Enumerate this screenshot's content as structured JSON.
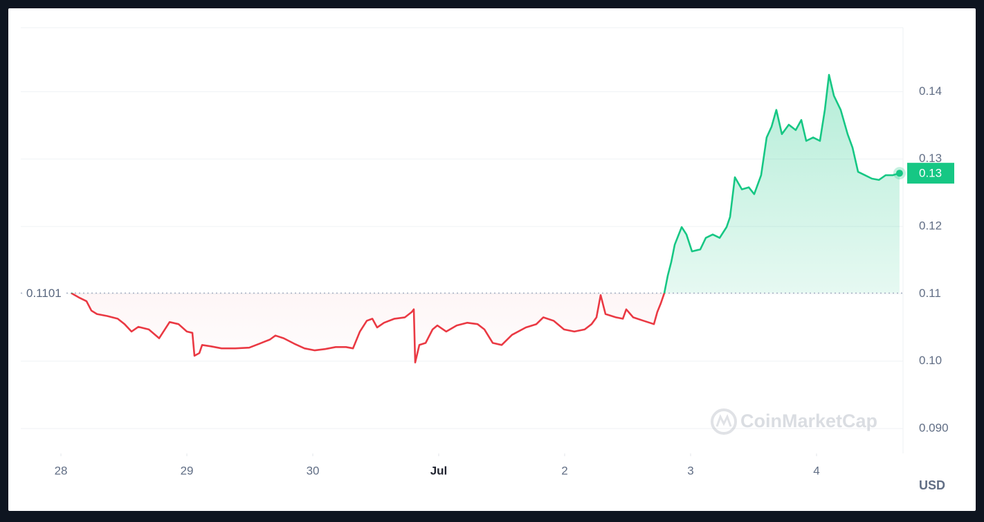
{
  "chart_data": {
    "type": "line",
    "x": [
      0.082,
      0.148,
      0.203,
      0.242,
      0.286,
      0.368,
      0.451,
      0.505,
      0.56,
      0.615,
      0.698,
      0.78,
      0.863,
      0.934,
      1.0,
      1.044,
      1.06,
      1.099,
      1.121,
      1.192,
      1.275,
      1.385,
      1.495,
      1.577,
      1.659,
      1.703,
      1.769,
      1.852,
      1.934,
      2.016,
      2.099,
      2.181,
      2.264,
      2.319,
      2.374,
      2.429,
      2.473,
      2.511,
      2.566,
      2.648,
      2.731,
      2.786,
      2.802,
      2.813,
      2.846,
      2.896,
      2.951,
      2.989,
      3.06,
      3.143,
      3.225,
      3.308,
      3.363,
      3.429,
      3.5,
      3.582,
      3.692,
      3.775,
      3.83,
      3.912,
      3.995,
      4.077,
      4.159,
      4.214,
      4.253,
      4.286,
      4.324,
      4.407,
      4.462,
      4.489,
      4.544,
      4.626,
      4.709,
      4.736,
      4.764,
      4.791,
      4.819,
      4.846,
      4.874,
      4.929,
      4.967,
      5.011,
      5.077,
      5.121,
      5.176,
      5.231,
      5.286,
      5.313,
      5.352,
      5.407,
      5.462,
      5.505,
      5.56,
      5.604,
      5.643,
      5.681,
      5.725,
      5.78,
      5.835,
      5.879,
      5.918,
      5.973,
      6.027,
      6.066,
      6.099,
      6.138,
      6.192,
      6.247,
      6.286,
      6.33,
      6.385,
      6.44,
      6.495,
      6.549,
      6.604,
      6.659
    ],
    "values": [
      0.1101,
      0.1094,
      0.1089,
      0.1075,
      0.107,
      0.1067,
      0.1063,
      0.1055,
      0.1044,
      0.1051,
      0.1047,
      0.1034,
      0.1058,
      0.1055,
      0.1044,
      0.1042,
      0.1008,
      0.1012,
      0.1024,
      0.1022,
      0.1019,
      0.1019,
      0.102,
      0.1026,
      0.1032,
      0.1038,
      0.1034,
      0.1026,
      0.1019,
      0.1016,
      0.1018,
      0.1021,
      0.1021,
      0.1019,
      0.1044,
      0.106,
      0.1063,
      0.105,
      0.1057,
      0.1063,
      0.1065,
      0.1073,
      0.1077,
      0.0998,
      0.1024,
      0.1027,
      0.1047,
      0.1053,
      0.1044,
      0.1053,
      0.1057,
      0.1055,
      0.1047,
      0.1027,
      0.1024,
      0.1039,
      0.105,
      0.1055,
      0.1065,
      0.106,
      0.1047,
      0.1044,
      0.1047,
      0.1055,
      0.1065,
      0.1098,
      0.107,
      0.1065,
      0.1063,
      0.1077,
      0.1065,
      0.106,
      0.1055,
      0.1073,
      0.1086,
      0.1101,
      0.1127,
      0.1147,
      0.1173,
      0.1199,
      0.1188,
      0.1163,
      0.1166,
      0.1183,
      0.1188,
      0.1183,
      0.1199,
      0.1214,
      0.1273,
      0.1255,
      0.1258,
      0.1248,
      0.1276,
      0.1332,
      0.1348,
      0.1373,
      0.1337,
      0.1351,
      0.1343,
      0.1358,
      0.1327,
      0.1332,
      0.1327,
      0.1373,
      0.1425,
      0.1394,
      0.1373,
      0.1337,
      0.1317,
      0.1281,
      0.1276,
      0.1271,
      0.1269,
      0.1276,
      0.1276,
      0.1279
    ],
    "up_color": "#16c784",
    "down_color": "#ea3943",
    "baseline": {
      "value": 0.1101,
      "label": "0.1101"
    },
    "current_price": {
      "value": 0.1279,
      "label": "0.13"
    },
    "xlim": [
      -0.319,
      6.687
    ],
    "xticks": [
      {
        "value": 0,
        "label": "28"
      },
      {
        "value": 1,
        "label": "29"
      },
      {
        "value": 2,
        "label": "30"
      },
      {
        "value": 3,
        "label": "Jul"
      },
      {
        "value": 4,
        "label": "2"
      },
      {
        "value": 5,
        "label": "3"
      },
      {
        "value": 6,
        "label": "4"
      }
    ],
    "ylim": [
      0.0863,
      0.1495
    ],
    "yticks": [
      {
        "value": 0.09,
        "label": "0.090"
      },
      {
        "value": 0.1,
        "label": "0.10"
      },
      0.11,
      0.12,
      0.13,
      0.14
    ],
    "grid": true,
    "currency": "USD",
    "watermark": "CoinMarketCap"
  }
}
